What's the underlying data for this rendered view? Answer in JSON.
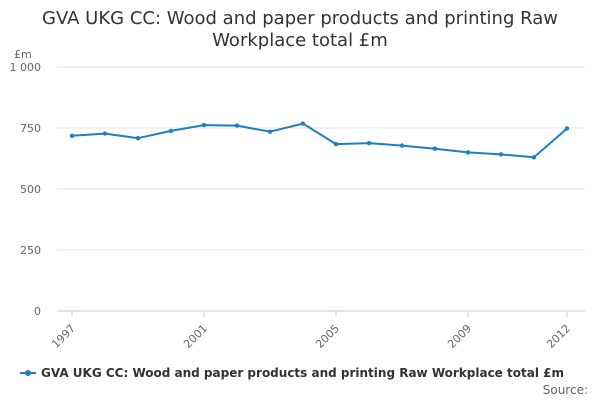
{
  "chart_data": {
    "type": "line",
    "title_lines": [
      "GVA UKG CC: Wood and paper products and printing Raw",
      "Workplace total £m"
    ],
    "ylabel": "£m",
    "xlabel": "",
    "ylim": [
      0,
      1000
    ],
    "yticks": [
      0,
      250,
      500,
      750,
      1000
    ],
    "ytick_labels": [
      "0",
      "250",
      "500",
      "750",
      "1 000"
    ],
    "xlim": [
      1997,
      2012
    ],
    "xticks": [
      1997,
      2001,
      2005,
      2009,
      2012
    ],
    "xtick_labels": [
      "1997",
      "2001",
      "2005",
      "2009",
      "2012"
    ],
    "grid": true,
    "legend": "bottom",
    "series": [
      {
        "name": "GVA UKG CC: Wood and paper products and printing Raw Workplace total £m",
        "color": "#1f7fc0",
        "x": [
          1997,
          1998,
          1999,
          2000,
          2001,
          2002,
          2003,
          2004,
          2005,
          2006,
          2007,
          2008,
          2009,
          2010,
          2011,
          2012
        ],
        "values": [
          718,
          727,
          708,
          738,
          762,
          760,
          735,
          768,
          684,
          688,
          678,
          665,
          650,
          642,
          630,
          748
        ]
      }
    ]
  },
  "legend_label": "GVA UKG CC: Wood and paper products and printing Raw Workplace total £m",
  "source_label": "Source:"
}
